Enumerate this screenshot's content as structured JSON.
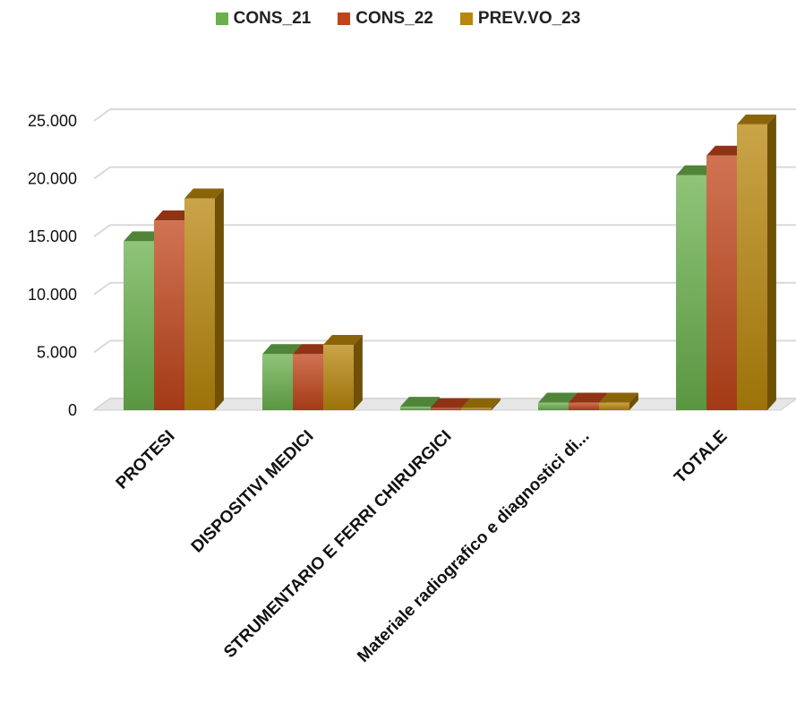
{
  "chart_data": {
    "type": "bar",
    "title": "",
    "xlabel": "",
    "ylabel": "",
    "categories": [
      "PROTESI",
      "DISPOSITIVI MEDICI",
      "STRUMENTARIO E FERRI CHIRURGICI",
      "Materiale radiografico e diagnostici di...",
      "TOTALE"
    ],
    "series": [
      {
        "name": "CONS_21",
        "color": "#6ab04c",
        "values": [
          14600,
          4850,
          300,
          650,
          20300
        ]
      },
      {
        "name": "CONS_22",
        "color": "#c0441a",
        "values": [
          16400,
          4850,
          180,
          650,
          22000
        ]
      },
      {
        "name": "PREV.VO_23",
        "color": "#b8860b",
        "values": [
          18300,
          5650,
          180,
          650,
          24700
        ]
      }
    ],
    "yticks": [
      "0",
      "5.000",
      "10.000",
      "15.000",
      "20.000",
      "25.000"
    ],
    "ylim": [
      0,
      25000
    ],
    "grid": true,
    "legend_position": "top"
  }
}
